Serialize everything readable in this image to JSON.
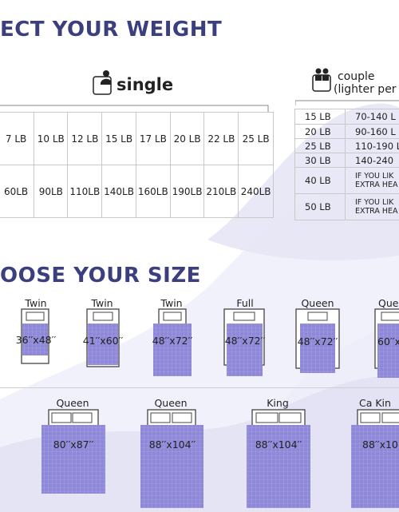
{
  "headings": {
    "weight": "ECT YOUR WEIGHT",
    "size": "OOSE YOUR SIZE"
  },
  "single": {
    "title": "single",
    "icon": "single-person-in-bed-icon",
    "weights": [
      "7 LB",
      "10 LB",
      "12 LB",
      "15 LB",
      "17 LB",
      "20 LB",
      "22 LB",
      "25 LB"
    ],
    "body_weights": [
      "60LB",
      "90LB",
      "110LB",
      "140LB",
      "160LB",
      "190LB",
      "210LB",
      "240LB"
    ]
  },
  "couple": {
    "title": "couple",
    "subtitle": "(lighter per",
    "icon": "couple-in-bed-icon",
    "rows": [
      {
        "blanket": "15 LB",
        "range": "70-140 L"
      },
      {
        "blanket": "20 LB",
        "range": "90-160 L"
      },
      {
        "blanket": "25 LB",
        "range": "110-190 L"
      },
      {
        "blanket": "30 LB",
        "range": "140-240"
      },
      {
        "blanket": "40 LB",
        "range": "IF YOU LIK",
        "range2": "EXTRA HEA"
      },
      {
        "blanket": "50 LB",
        "range": "IF YOU LIK",
        "range2": "EXTRA HEA"
      }
    ]
  },
  "sizes_row1": [
    {
      "bed": "Twin",
      "dim": "36′′x48′′"
    },
    {
      "bed": "Twin",
      "dim": "41′′x60′′"
    },
    {
      "bed": "Twin",
      "dim": "48′′x72′′"
    },
    {
      "bed": "Full",
      "dim": "48′′x72′′"
    },
    {
      "bed": "Queen",
      "dim": "48′′x72′′"
    },
    {
      "bed": "Que",
      "dim": "60′′x"
    }
  ],
  "sizes_row2": [
    {
      "bed": "Queen",
      "dim": "80′′x87′′"
    },
    {
      "bed": "Queen",
      "dim": "88′′x104′′"
    },
    {
      "bed": "King",
      "dim": "88′′x104′′"
    },
    {
      "bed": "Ca Kin",
      "dim": "88′′x10"
    }
  ],
  "colors": {
    "heading": "#3b3f7e",
    "blanket": "#8a84d6",
    "bg_wave": "#e8e7f6"
  }
}
